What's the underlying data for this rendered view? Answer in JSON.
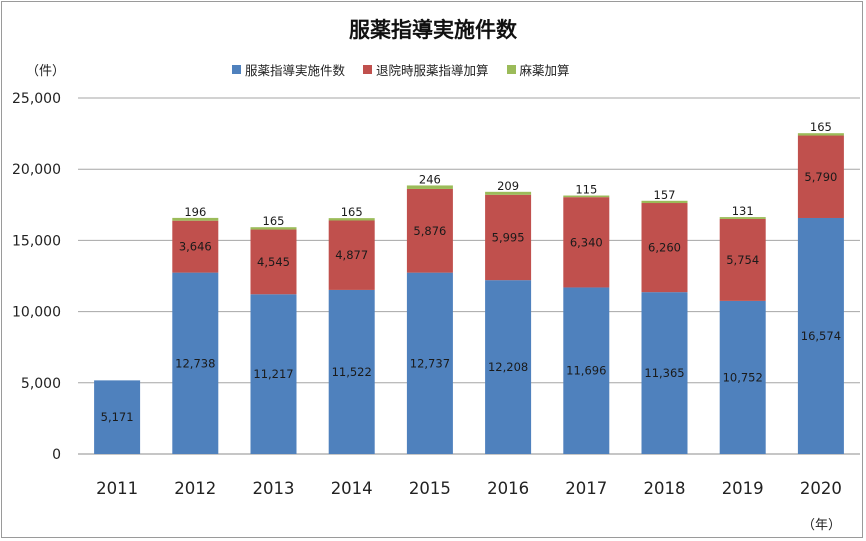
{
  "chart_data": {
    "type": "bar",
    "stacked": true,
    "title": "服薬指導実施件数",
    "y_unit": "（件）",
    "x_unit": "（年）",
    "categories": [
      "2011",
      "2012",
      "2013",
      "2014",
      "2015",
      "2016",
      "2017",
      "2018",
      "2019",
      "2020"
    ],
    "series": [
      {
        "name": "服薬指導実施件数",
        "color": "#4f81bd",
        "values": [
          5171,
          12738,
          11217,
          11522,
          12737,
          12208,
          11696,
          11365,
          10752,
          16574
        ]
      },
      {
        "name": "退院時服薬指導加算",
        "color": "#c0504d",
        "values": [
          null,
          3646,
          4545,
          4877,
          5876,
          5995,
          6340,
          6260,
          5754,
          5790
        ]
      },
      {
        "name": "麻薬加算",
        "color": "#9bbb59",
        "values": [
          null,
          196,
          165,
          165,
          246,
          209,
          115,
          157,
          131,
          165
        ]
      }
    ],
    "y_ticks": [
      0,
      5000,
      10000,
      15000,
      20000,
      25000
    ],
    "y_tick_labels": [
      "0",
      "5,000",
      "10,000",
      "15,000",
      "20,000",
      "25,000"
    ],
    "ylim": [
      0,
      25000
    ],
    "grid": "horizontal",
    "legend_position": "top"
  }
}
